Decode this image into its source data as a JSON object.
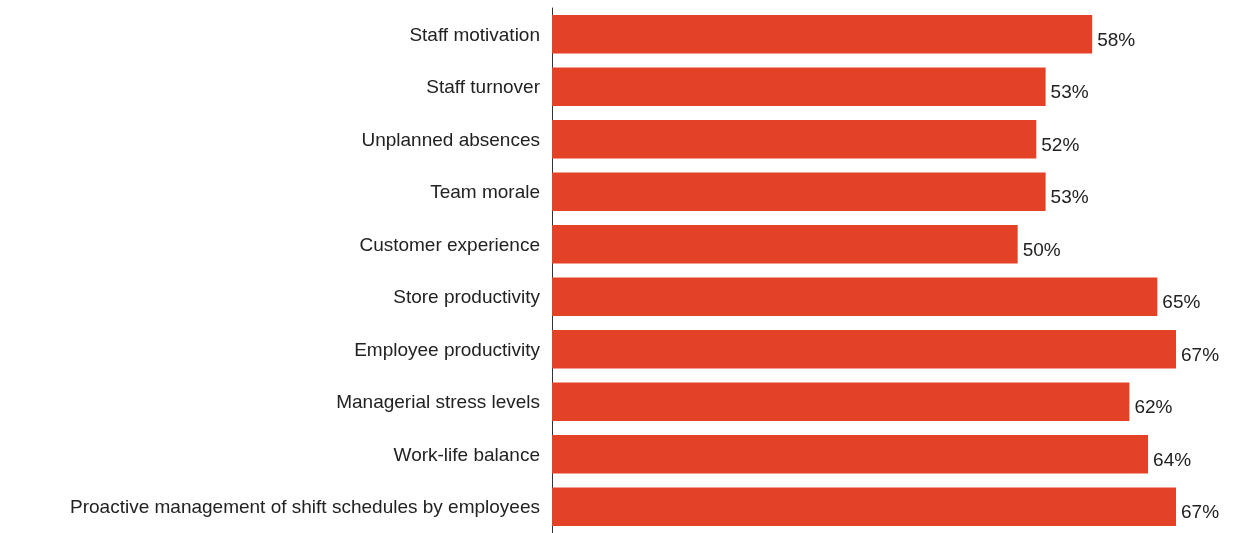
{
  "chart_data": {
    "type": "bar",
    "orientation": "horizontal",
    "categories": [
      "Staff motivation",
      "Staff turnover",
      "Unplanned absences",
      "Team morale",
      "Customer experience",
      "Store productivity",
      "Employee productivity",
      "Managerial stress levels",
      "Work-life balance",
      "Proactive management of shift schedules by employees"
    ],
    "values": [
      58,
      53,
      52,
      53,
      50,
      65,
      67,
      62,
      64,
      67
    ],
    "value_labels": [
      "58%",
      "53%",
      "52%",
      "53%",
      "50%",
      "65%",
      "67%",
      "62%",
      "64%",
      "67%"
    ],
    "color": "#e34226"
  }
}
